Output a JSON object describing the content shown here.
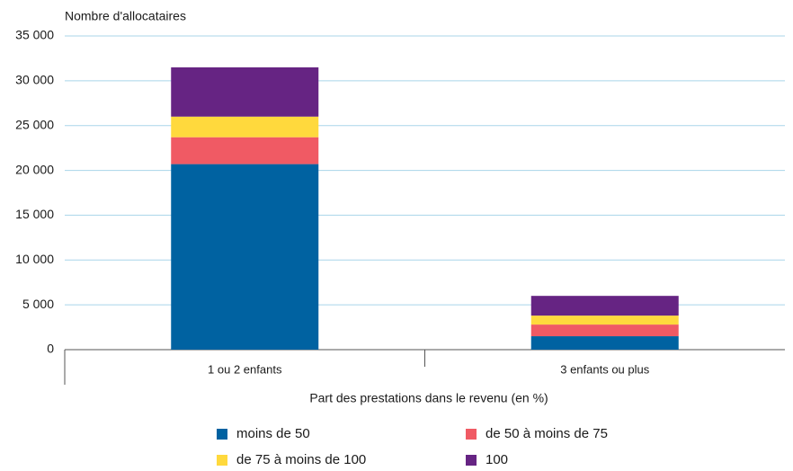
{
  "chart_data": {
    "type": "stacked_bar",
    "ylabel": "Nombre d'allocataires",
    "xlabel": "Part des prestations dans le revenu (en %)",
    "categories": [
      "1 ou 2 enfants",
      "3 enfants ou plus"
    ],
    "series": [
      {
        "name": "moins de 50",
        "color": "#0062a1",
        "values": [
          20700,
          1500
        ]
      },
      {
        "name": "de 50 à moins de 75",
        "color": "#f05a64",
        "values": [
          3000,
          1300
        ]
      },
      {
        "name": "de 75 à moins de 100",
        "color": "#ffd93d",
        "values": [
          2300,
          1000
        ]
      },
      {
        "name": "100",
        "color": "#662483",
        "values": [
          5500,
          2200
        ]
      }
    ],
    "ylim": [
      0,
      35000
    ],
    "yticks": [
      0,
      {
        "value": 5000,
        "label": "5 000"
      },
      {
        "value": 10000,
        "label": "10 000"
      },
      {
        "value": 15000,
        "label": "15 000"
      },
      {
        "value": 20000,
        "label": "20 000"
      },
      {
        "value": 25000,
        "label": "25 000"
      },
      {
        "value": 30000,
        "label": "30 000"
      },
      {
        "value": 35000,
        "label": "35 000"
      }
    ],
    "grid": true
  }
}
